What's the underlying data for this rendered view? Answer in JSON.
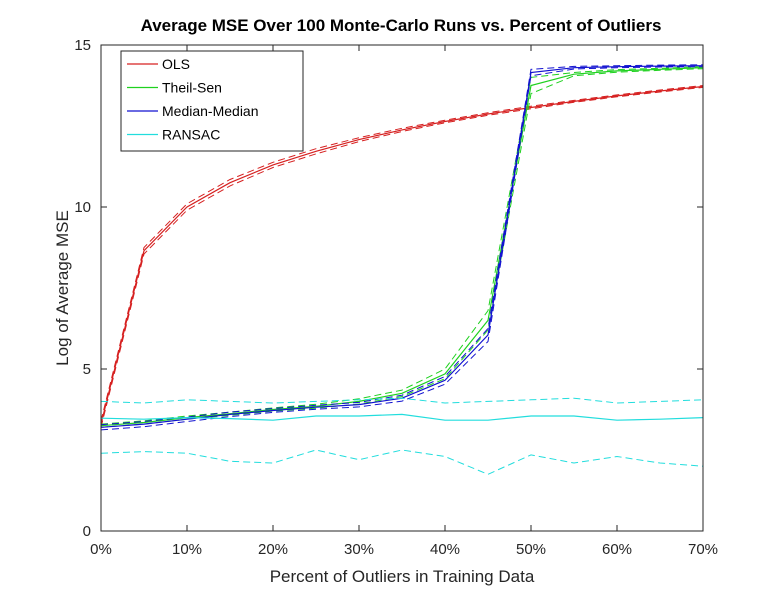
{
  "chart_data": {
    "type": "line",
    "title": "Average MSE Over 100 Monte-Carlo Runs vs. Percent of Outliers",
    "xlabel": "Percent of Outliers in Training Data",
    "ylabel": "Log of Average MSE",
    "xlim": [
      0,
      70
    ],
    "ylim": [
      0,
      15
    ],
    "xticks": [
      0,
      10,
      20,
      30,
      40,
      50,
      60,
      70
    ],
    "xtick_labels": [
      "0%",
      "10%",
      "20%",
      "30%",
      "40%",
      "50%",
      "60%",
      "70%"
    ],
    "yticks": [
      0,
      5,
      10,
      15
    ],
    "ytick_labels": [
      "0",
      "5",
      "10",
      "15"
    ],
    "grid": false,
    "legend_position": "top-left",
    "x": [
      0,
      5,
      10,
      15,
      20,
      25,
      30,
      35,
      40,
      45,
      50,
      55,
      60,
      65,
      70
    ],
    "series": [
      {
        "name": "OLS",
        "color": "#d62020",
        "values": [
          3.3,
          8.65,
          10.0,
          10.75,
          11.3,
          11.72,
          12.08,
          12.38,
          12.64,
          12.87,
          13.07,
          13.26,
          13.43,
          13.58,
          13.72
        ],
        "band": [
          0.1,
          0.1,
          0.1,
          0.1,
          0.08,
          0.08,
          0.06,
          0.05,
          0.04,
          0.04,
          0.04,
          0.03,
          0.03,
          0.03,
          0.03
        ]
      },
      {
        "name": "Theil-Sen",
        "color": "#1fd11f",
        "values": [
          3.25,
          3.35,
          3.5,
          3.62,
          3.75,
          3.85,
          4.0,
          4.25,
          4.85,
          6.5,
          13.75,
          14.1,
          14.2,
          14.25,
          14.3
        ],
        "band": [
          0.05,
          0.05,
          0.05,
          0.05,
          0.05,
          0.06,
          0.08,
          0.1,
          0.15,
          0.3,
          0.25,
          0.05,
          0.04,
          0.03,
          0.03
        ]
      },
      {
        "name": "Median-Median",
        "color": "#1212d0",
        "values": [
          3.2,
          3.3,
          3.45,
          3.6,
          3.72,
          3.82,
          3.9,
          4.1,
          4.65,
          6.05,
          14.15,
          14.3,
          14.33,
          14.35,
          14.36
        ],
        "band": [
          0.08,
          0.08,
          0.07,
          0.07,
          0.06,
          0.06,
          0.07,
          0.09,
          0.12,
          0.2,
          0.1,
          0.04,
          0.03,
          0.03,
          0.03
        ]
      },
      {
        "name": "RANSAC",
        "color": "#22dddd",
        "values": [
          3.48,
          3.45,
          3.5,
          3.47,
          3.42,
          3.55,
          3.55,
          3.6,
          3.42,
          3.42,
          3.55,
          3.55,
          3.42,
          3.45,
          3.5
        ],
        "upper": [
          4.0,
          3.95,
          4.05,
          4.0,
          3.95,
          4.0,
          4.05,
          4.1,
          3.95,
          4.0,
          4.05,
          4.1,
          3.95,
          4.0,
          4.05
        ],
        "lower": [
          2.4,
          2.45,
          2.4,
          2.15,
          2.1,
          2.5,
          2.2,
          2.5,
          2.3,
          1.75,
          2.35,
          2.1,
          2.3,
          2.1,
          2.0
        ]
      }
    ]
  }
}
